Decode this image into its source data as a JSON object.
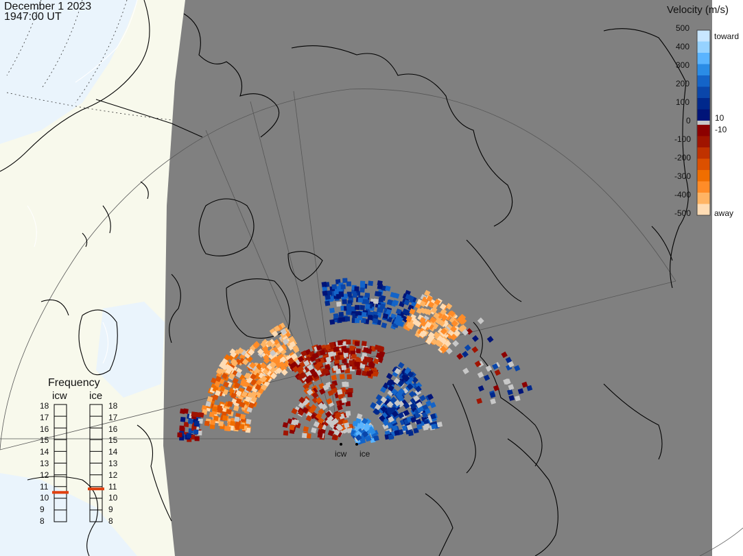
{
  "title": {
    "date": "December  1 2023",
    "time": "1947:00 UT"
  },
  "colors": {
    "land": "#f8f9ec",
    "ocean": "#eaf4fc",
    "night": "#808080",
    "coast": "#000000",
    "gridline": "#555555",
    "ground_scatter": "#c8c8c8"
  },
  "legend": {
    "title": "Velocity (m/s)",
    "ticks": [
      "500",
      "400",
      "300",
      "200",
      "100",
      "0",
      "-100",
      "-200",
      "-300",
      "-400",
      "-500"
    ],
    "inner_ticks": [
      "10",
      "-10"
    ],
    "toward_label": "toward",
    "away_label": "away",
    "colors_toward": [
      "#c8e6ff",
      "#96d2ff",
      "#5ab4ff",
      "#2a8ce6",
      "#1464c8",
      "#0a46aa",
      "#00288c",
      "#001478"
    ],
    "colors_away": [
      "#8c0000",
      "#a01400",
      "#c03200",
      "#dc5000",
      "#f06e00",
      "#ff8c28",
      "#ffb464",
      "#ffdcb4"
    ]
  },
  "frequency": {
    "title": "Frequency",
    "radars": [
      {
        "name": "icw",
        "value_mhz": 10.5
      },
      {
        "name": "ice",
        "value_mhz": 10.8
      }
    ],
    "scale_ticks": [
      "18",
      "17",
      "16",
      "15",
      "14",
      "13",
      "12",
      "11",
      "10",
      "9",
      "8"
    ]
  },
  "radar_sites": [
    {
      "name": "icw"
    },
    {
      "name": "ice"
    }
  ]
}
